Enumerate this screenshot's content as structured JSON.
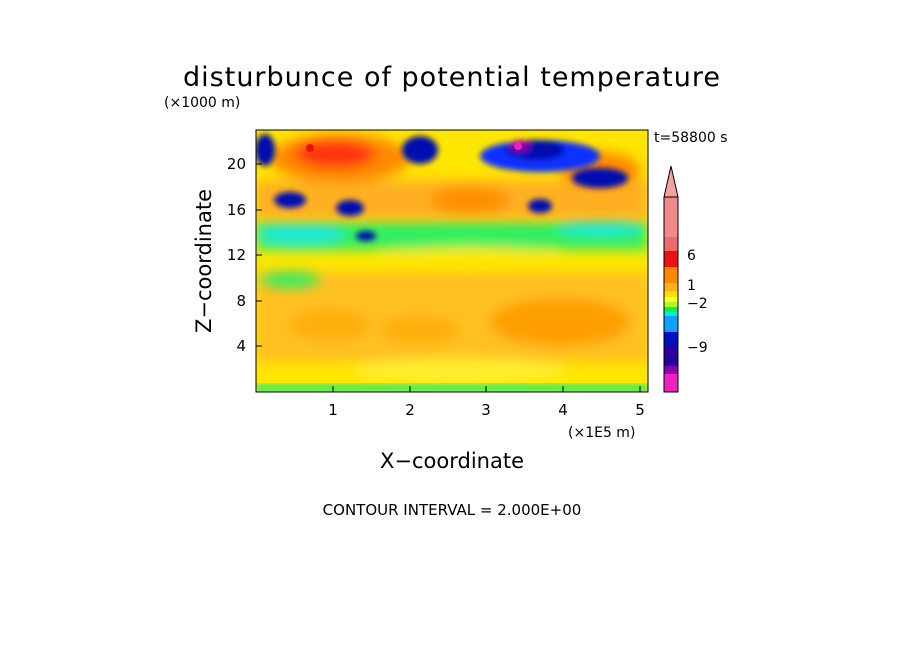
{
  "chart_data": {
    "type": "heatmap",
    "title": "disturbunce of potential temperature",
    "time_label": "t=58800 s",
    "y_unit_label": "(×1000 m)",
    "x_unit_label": "(×1E5 m)",
    "xlabel": "X−coordinate",
    "ylabel": "Z−coordinate",
    "xlim": [
      0,
      5.1
    ],
    "ylim": [
      0,
      23
    ],
    "x_ticks": [
      "1",
      "2",
      "3",
      "4",
      "5"
    ],
    "y_ticks": [
      "4",
      "8",
      "12",
      "16",
      "20"
    ],
    "contour_note": "CONTOUR INTERVAL = 2.000E+00",
    "colorbar": {
      "tick_labels": [
        "6",
        "1",
        "−2",
        "−9"
      ],
      "tick_values": [
        6,
        1,
        -2,
        -9
      ],
      "colors_top_to_bottom": [
        "#f08a8a",
        "#f06a6a",
        "#ee1111",
        "#ff8800",
        "#ffb020",
        "#ffe000",
        "#ffff30",
        "#a8ff20",
        "#10ee50",
        "#10e8d0",
        "#10a0ff",
        "#0010c0",
        "#2800a0",
        "#8800b0",
        "#f020c0"
      ]
    },
    "field_description_points": [
      {
        "x": 0.1,
        "z": 20,
        "value": -4
      },
      {
        "x": 0.7,
        "z": 21.5,
        "value": 6
      },
      {
        "x": 1.0,
        "z": 21,
        "value": 5
      },
      {
        "x": 1.3,
        "z": 20.5,
        "value": 4
      },
      {
        "x": 2.1,
        "z": 21,
        "value": -4
      },
      {
        "x": 3.4,
        "z": 21.5,
        "value": -9
      },
      {
        "x": 3.7,
        "z": 20.5,
        "value": -5
      },
      {
        "x": 4.4,
        "z": 19.5,
        "value": -5
      },
      {
        "x": 0.4,
        "z": 17,
        "value": -4
      },
      {
        "x": 1.2,
        "z": 16.5,
        "value": -4
      },
      {
        "x": 3.7,
        "z": 16.5,
        "value": -4
      },
      {
        "x": 4.0,
        "z": 6,
        "value": 3
      },
      {
        "x": 0.8,
        "z": 6,
        "value": 2
      },
      {
        "x": 2.5,
        "z": 3,
        "value": 1
      },
      {
        "x": 2.5,
        "z": 12,
        "value": 0
      }
    ]
  }
}
